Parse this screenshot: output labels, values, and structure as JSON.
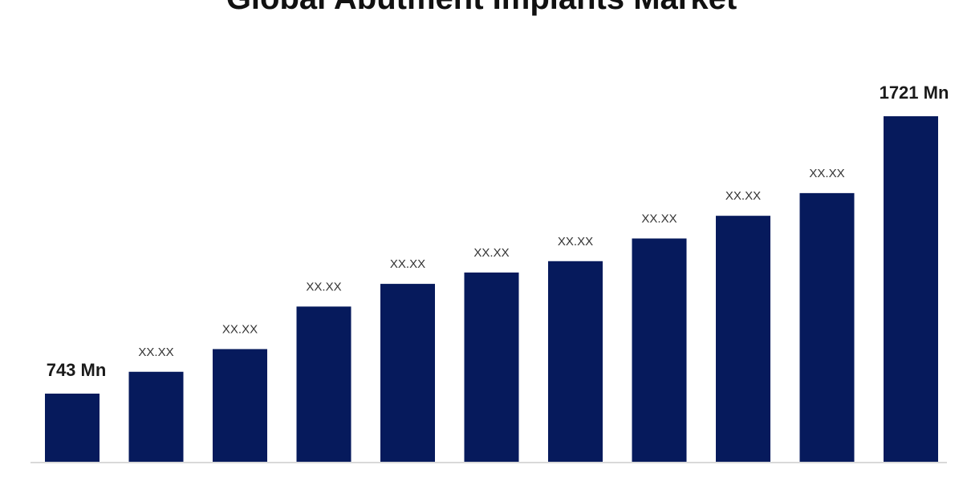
{
  "chart_data": {
    "type": "bar",
    "title": "Global Abutment Implants Market",
    "xlabel": "",
    "ylabel": "",
    "categories": [
      "",
      "",
      "",
      "",
      "",
      "",
      "",
      "",
      "",
      "",
      ""
    ],
    "values": [
      743,
      820,
      900,
      1050,
      1130,
      1170,
      1210,
      1290,
      1370,
      1450,
      1721
    ],
    "data_labels": [
      "743 Mn",
      "XX.XX",
      "XX.XX",
      "XX.XX",
      "XX.XX",
      "XX.XX",
      "XX.XX",
      "XX.XX",
      "XX.XX",
      "XX.XX",
      "1721 Mn"
    ],
    "ylim": [
      500,
      1800
    ],
    "grid": false,
    "legend": "none",
    "bar_color": "#061a5c",
    "baseline_color": "#d9d9d9"
  }
}
